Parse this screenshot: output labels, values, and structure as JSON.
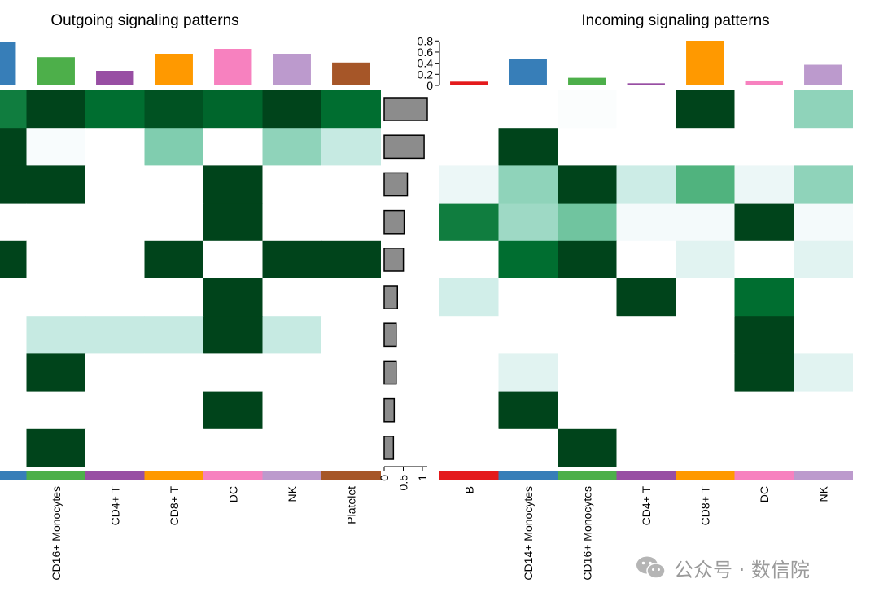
{
  "chart_data": [
    {
      "type": "heatmap",
      "title": "Outgoing signaling patterns",
      "columns": [
        "",
        "CD16+ Monocytes",
        "CD4+ T",
        "CD8+ T",
        "DC",
        "NK",
        "Platelet"
      ],
      "column_colors": [
        "#377EB8",
        "#4DAF4A",
        "#984EA3",
        "#FF9900",
        "#F781BF",
        "#BC9ACD",
        "#A65628"
      ],
      "column_totals": [
        0.9,
        0.58,
        0.3,
        0.65,
        0.75,
        0.65,
        0.47
      ],
      "rows": 10,
      "values": [
        [
          0.8,
          1.0,
          0.85,
          0.95,
          0.88,
          1.0,
          0.85
        ],
        [
          1.0,
          0.03,
          0.0,
          0.45,
          0.0,
          0.4,
          0.22
        ],
        [
          1.0,
          1.0,
          0.0,
          0.0,
          1.0,
          0.0,
          0.0
        ],
        [
          0.0,
          0.0,
          0.0,
          0.0,
          1.0,
          0.0,
          0.0
        ],
        [
          1.0,
          0.0,
          0.0,
          1.0,
          0.0,
          1.0,
          1.0
        ],
        [
          0.0,
          0.0,
          0.0,
          0.0,
          1.0,
          0.0,
          0.0
        ],
        [
          0.0,
          0.22,
          0.22,
          0.22,
          1.0,
          0.22,
          0.0
        ],
        [
          0.0,
          1.0,
          0.0,
          0.0,
          0.0,
          0.0,
          0.0
        ],
        [
          0.0,
          0.0,
          0.0,
          0.0,
          1.0,
          0.0,
          0.0
        ],
        [
          0.0,
          1.0,
          0.0,
          0.0,
          0.0,
          0.0,
          0.0
        ]
      ]
    },
    {
      "type": "bar",
      "orientation": "horizontal",
      "values": [
        1.0,
        0.92,
        0.5,
        0.42,
        0.4,
        0.25,
        0.22,
        0.22,
        0.17,
        0.15
      ],
      "xticks": [
        "0",
        "0.5",
        "1"
      ],
      "xlim": [
        0,
        1.1
      ]
    },
    {
      "type": "heatmap",
      "title": "Incoming signaling patterns",
      "columns": [
        "B",
        "CD14+ Monocytes",
        "CD16+ Monocytes",
        "CD4+ T",
        "CD8+ T",
        "DC",
        "NK"
      ],
      "column_colors": [
        "#E41A1C",
        "#377EB8",
        "#4DAF4A",
        "#984EA3",
        "#FF9900",
        "#F781BF",
        "#BC9ACD"
      ],
      "column_totals": [
        0.07,
        0.48,
        0.14,
        0.04,
        0.82,
        0.09,
        0.38
      ],
      "yticks": [
        "0",
        "0.2",
        "0.4",
        "0.6",
        "0.8"
      ],
      "ylim": [
        0,
        0.85
      ],
      "rows": 10,
      "values": [
        [
          0.0,
          0.0,
          0.02,
          0.0,
          1.0,
          0.0,
          0.4
        ],
        [
          0.0,
          1.0,
          0.0,
          0.0,
          0.0,
          0.0,
          0.0
        ],
        [
          0.08,
          0.4,
          1.0,
          0.2,
          0.6,
          0.08,
          0.4
        ],
        [
          0.8,
          0.35,
          0.5,
          0.05,
          0.05,
          1.0,
          0.05
        ],
        [
          0.0,
          0.85,
          1.0,
          0.0,
          0.12,
          0.0,
          0.12
        ],
        [
          0.18,
          0.0,
          0.0,
          1.0,
          0.0,
          0.85,
          0.0
        ],
        [
          0.0,
          0.0,
          0.0,
          0.0,
          0.0,
          1.0,
          0.0
        ],
        [
          0.0,
          0.12,
          0.0,
          0.0,
          0.0,
          1.0,
          0.12
        ],
        [
          0.0,
          1.0,
          0.0,
          0.0,
          0.0,
          0.0,
          0.0
        ],
        [
          0.0,
          0.0,
          1.0,
          0.0,
          0.0,
          0.0,
          0.0
        ]
      ]
    }
  ],
  "watermark": {
    "text": "公众号 · 数信院",
    "icon": "wechat-icon"
  }
}
